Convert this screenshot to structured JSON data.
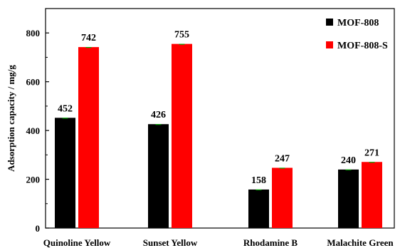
{
  "chart_data": {
    "type": "bar",
    "title": "",
    "xlabel": "",
    "ylabel": "Adsorption capacity  / mg/g",
    "ylim": [
      0,
      900
    ],
    "yticks": [
      0,
      200,
      400,
      600,
      800
    ],
    "categories": [
      "Quinoline Yellow",
      "Sunset Yellow",
      "Rhodamine B",
      "Malachite Green"
    ],
    "series": [
      {
        "name": "MOF-808",
        "color": "#000000",
        "values": [
          452,
          426,
          158,
          240
        ]
      },
      {
        "name": "MOF-808-S",
        "color": "#ff0000",
        "values": [
          742,
          755,
          247,
          271
        ]
      }
    ],
    "legend_position": "top-right",
    "grid": false,
    "error_bar_color": "#00aa00"
  }
}
